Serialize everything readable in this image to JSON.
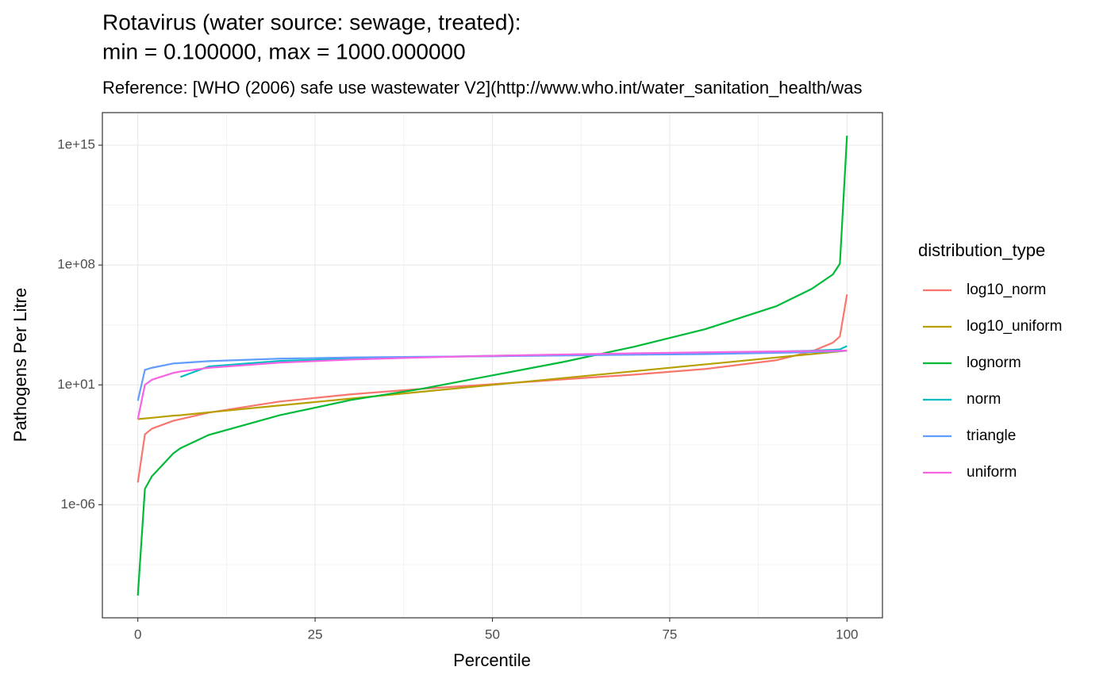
{
  "chart_data": {
    "type": "line",
    "title": [
      "Rotavirus (water source: sewage, treated):",
      "min = 0.100000, max = 1000.000000"
    ],
    "subtitle": "Reference: [WHO (2006) safe use wastewater V2](http://www.who.int/water_sanitation_health/was",
    "x_label": "Percentile",
    "y_label": "Pathogens Per Litre",
    "legend_title": "distribution_type",
    "legend_position": "right",
    "log_y": true,
    "grid": true,
    "x": [
      0,
      1,
      2,
      5,
      6,
      10,
      20,
      30,
      40,
      50,
      60,
      70,
      80,
      90,
      95,
      98,
      99,
      100
    ],
    "xlim": [
      -5,
      105
    ],
    "xticks": [
      0,
      25,
      50,
      75,
      100
    ],
    "ylim": [
      2.5e-13,
      8e+16
    ],
    "yticks": [
      {
        "value": 1e-06,
        "label": "1e-06"
      },
      {
        "value": 10,
        "label": "1e+01"
      },
      {
        "value": 100000000.0,
        "label": "1e+08"
      },
      {
        "value": 1000000000000000.0,
        "label": "1e+15"
      }
    ],
    "series": [
      {
        "name": "log10_norm",
        "color": "#F8766D",
        "values": [
          2e-05,
          0.013,
          0.028,
          0.08,
          0.1,
          0.24,
          1.07,
          2.8,
          5.9,
          11,
          21,
          40,
          85,
          275,
          890,
          2900,
          6800,
          1900000.0
        ]
      },
      {
        "name": "log10_uniform",
        "color": "#B79F00",
        "values": [
          0.1,
          0.11,
          0.12,
          0.16,
          0.17,
          0.25,
          0.63,
          1.58,
          3.98,
          10,
          25.1,
          63.1,
          158,
          398,
          631,
          832,
          912,
          1000
        ]
      },
      {
        "name": "lognorm",
        "color": "#00BA38",
        "values": [
          5e-12,
          8.5e-06,
          4.7e-05,
          0.001,
          0.002,
          0.012,
          0.17,
          1.3,
          5.9,
          36,
          220,
          1700,
          18000,
          390000,
          4000000.0,
          28000000.0,
          120000000.0,
          3600000000000000.0
        ]
      },
      {
        "name": "norm",
        "color": "#00BFC4",
        "values": [
          null,
          null,
          null,
          null,
          29,
          120,
          250,
          340,
          420,
          500,
          580,
          660,
          750,
          880,
          990,
          1120,
          1200,
          1860
        ]
      },
      {
        "name": "triangle",
        "color": "#619CFF",
        "values": [
          1.2,
          76,
          100,
          178,
          190,
          245,
          340,
          400,
          440,
          470,
          520,
          580,
          630,
          750,
          820,
          900,
          950,
          1000
        ]
      },
      {
        "name": "uniform",
        "color": "#F564E3",
        "values": [
          0.1,
          10.1,
          20.1,
          50.1,
          60.1,
          100.1,
          200.1,
          300.1,
          400.1,
          500.1,
          600.1,
          700.1,
          800.1,
          900.1,
          950.1,
          980.1,
          990.1,
          1000
        ]
      }
    ]
  }
}
